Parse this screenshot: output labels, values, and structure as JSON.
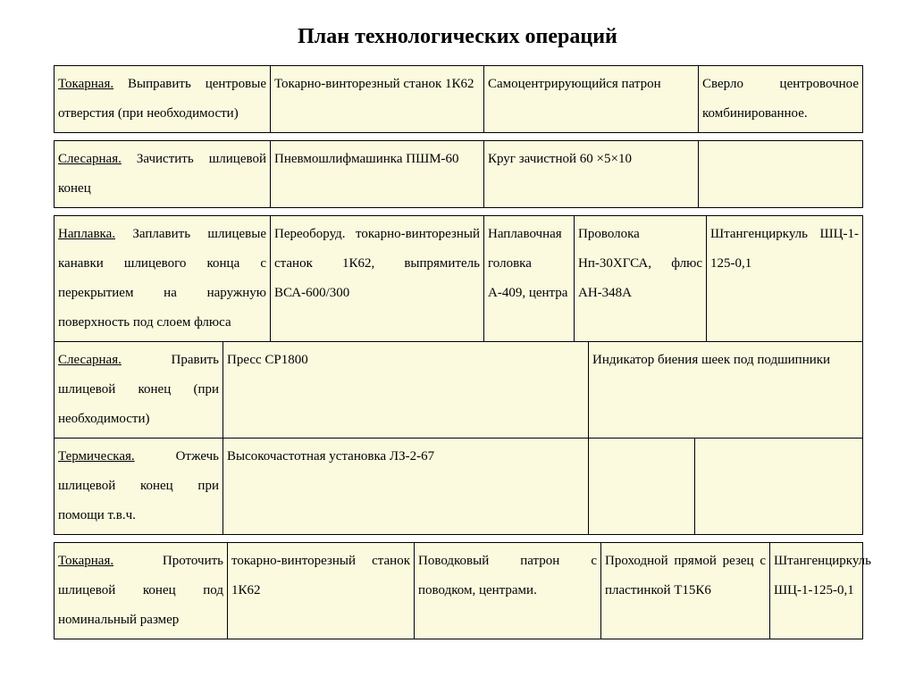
{
  "title": "План технологических операций",
  "background_color": "#fbfadf",
  "border_color": "#000000",
  "font_family": "Times New Roman",
  "rows": {
    "r1": {
      "op": "Токарная.",
      "desc": " Выправить центровые отверстия (при необходимости)",
      "c2": "Токарно-винторезный станок 1К62",
      "c3": "Самоцентрирующийся патрон",
      "c4": "Сверло центровочное комбинированное."
    },
    "r2": {
      "op": "Слесарная.",
      "desc": " Зачистить шлицевой конец",
      "c2": "Пневмошлифмашинка ПШМ-60",
      "c3": "Круг зачистной 60 ×5×10",
      "c4": ""
    },
    "r3": {
      "op": "Наплавка.",
      "desc": " Заплавить шлицевые канавки шлицевого конца с перекрытием на наружную поверхность под слоем флюса",
      "c2": "Переоборуд. токарно-винторезный станок 1К62, выпрямитель ВСА-600/300",
      "c3": "Наплавочная головка А-409, центра",
      "c4": "Проволока Нп-30ХГСА, флюс АН-348А",
      "c5": "Штангенциркуль ШЦ-1-125-0,1"
    },
    "r4": {
      "op": "Слесарная.",
      "desc": " Править шлицевой конец (при необходимости)",
      "c2": "Пресс СР1800",
      "c3": "Индикатор биения шеек под подшипники"
    },
    "r5": {
      "op": "Термическая.",
      "desc": " Отжечь шлицевой конец при помощи т.в.ч.",
      "c2": "Высокочастотная установка ЛЗ-2-67",
      "c3": "",
      "c4": ""
    },
    "r6": {
      "op": "Токарная.",
      "desc": " Проточить шлицевой конец под номинальный размер",
      "c2": "токарно-винторезный станок 1К62",
      "c3": "Поводковый патрон с поводком, центрами.",
      "c4": "Проходной прямой резец с пластинкой Т15К6",
      "c5": "Штангенциркуль ШЦ-1-125-0,1"
    }
  }
}
